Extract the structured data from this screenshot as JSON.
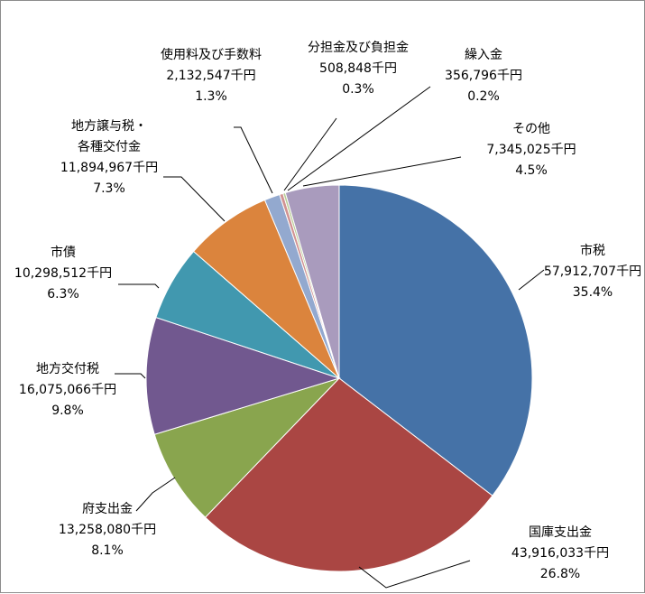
{
  "chart_data": {
    "type": "pie",
    "title": "",
    "start_angle_deg": 0,
    "direction": "clockwise",
    "legend": "none",
    "slices": [
      {
        "name": "市税",
        "amount": "57,912,707千円",
        "percent": "35.4%",
        "value": 35.4,
        "color": "#4572a7"
      },
      {
        "name": "国庫支出金",
        "amount": "43,916,033千円",
        "percent": "26.8%",
        "value": 26.8,
        "color": "#aa4643"
      },
      {
        "name": "府支出金",
        "amount": "13,258,080千円",
        "percent": "8.1%",
        "value": 8.1,
        "color": "#89a54e"
      },
      {
        "name": "地方交付税",
        "amount": "16,075,066千円",
        "percent": "9.8%",
        "value": 9.8,
        "color": "#71588f"
      },
      {
        "name": "市債",
        "amount": "10,298,512千円",
        "percent": "6.3%",
        "value": 6.3,
        "color": "#4198af"
      },
      {
        "name": [
          "地方譲与税・",
          "各種交付金"
        ],
        "amount": "11,894,967千円",
        "percent": "7.3%",
        "value": 7.3,
        "color": "#db843d"
      },
      {
        "name": "使用料及び手数料",
        "amount": "2,132,547千円",
        "percent": "1.3%",
        "value": 1.3,
        "color": "#93a9cf"
      },
      {
        "name": "分担金及び負担金",
        "amount": "508,848千円",
        "percent": "0.3%",
        "value": 0.3,
        "color": "#d19392"
      },
      {
        "name": "繰入金",
        "amount": "356,796千円",
        "percent": "0.2%",
        "value": 0.2,
        "color": "#b9cd96"
      },
      {
        "name": "その他",
        "amount": "7,345,025千円",
        "percent": "4.5%",
        "value": 4.5,
        "color": "#a99bbd"
      }
    ]
  }
}
